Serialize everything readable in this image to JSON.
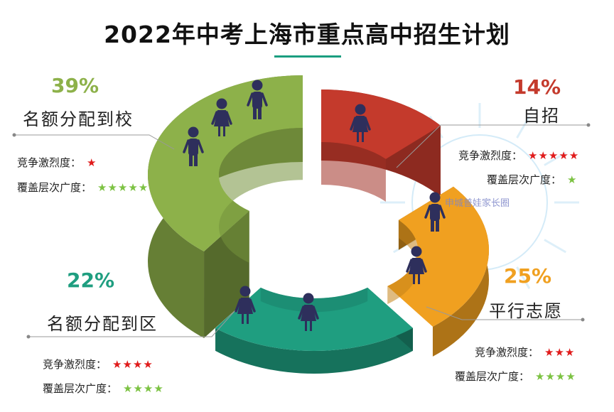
{
  "title": "2022年中考上海市重点高中招生计划",
  "watermark": "申城普娃家长圈",
  "chart_data": {
    "type": "pie",
    "title": "2022年中考上海市重点高中招生计划",
    "slices": [
      {
        "label": "自招",
        "value": 14,
        "pct_label": "14%",
        "competition_label": "竞争激烈度：",
        "competition_stars": "★★★★★",
        "coverage_label": "覆盖层次广度：",
        "coverage_stars": "★",
        "color": "#c43a2c"
      },
      {
        "label": "平行志愿",
        "value": 25,
        "pct_label": "25%",
        "competition_label": "竞争激烈度：",
        "competition_stars": "★★★",
        "coverage_label": "覆盖层次广度：",
        "coverage_stars": "★★★★",
        "color": "#f0a020"
      },
      {
        "label": "名额分配到区",
        "value": 22,
        "pct_label": "22%",
        "competition_label": "竞争激烈度：",
        "competition_stars": "★★★★",
        "coverage_label": "覆盖层次广度：",
        "coverage_stars": "★★★★",
        "color": "#1f9e80"
      },
      {
        "label": "名额分配到校",
        "value": 39,
        "pct_label": "39%",
        "competition_label": "竞争激烈度：",
        "competition_stars": "★",
        "coverage_label": "覆盖层次广度：",
        "coverage_stars": "★★★★★",
        "color": "#8db14a"
      }
    ]
  }
}
